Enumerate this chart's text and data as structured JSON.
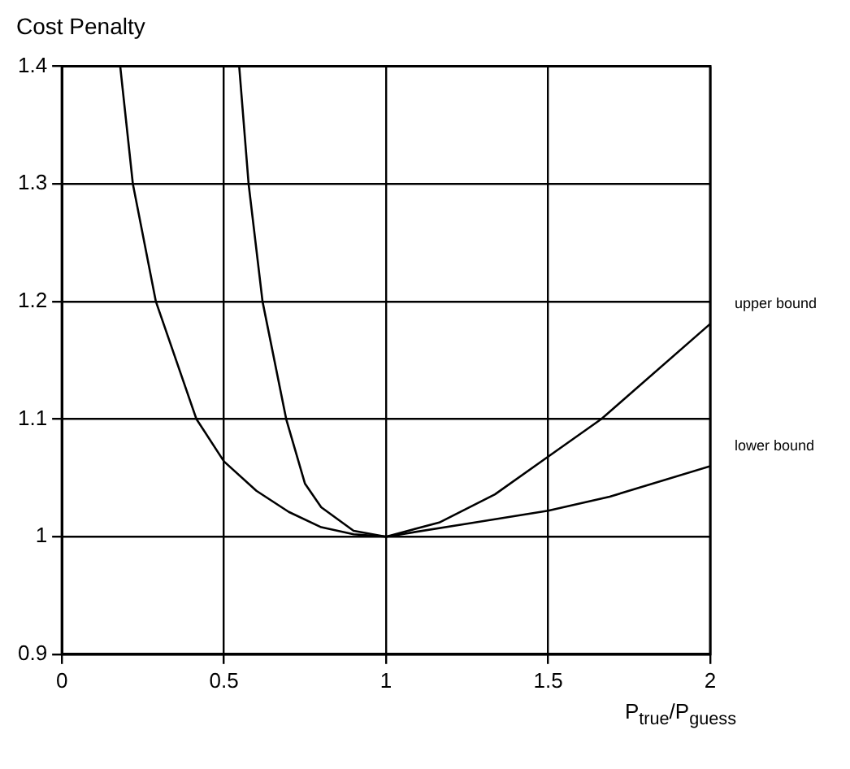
{
  "chart_data": {
    "type": "line",
    "ylabel": "Cost Penalty",
    "xlabel": "P$_{true}$/P$_{guess}$",
    "xlim": [
      0,
      2
    ],
    "xticks": [
      0,
      0.5,
      1,
      1.5,
      2
    ],
    "ylim": [
      0.9,
      1.4
    ],
    "yticks": [
      0.9,
      1,
      1.1,
      1.2,
      1.3,
      1.4
    ],
    "grid": true,
    "legend": false,
    "marker": "none",
    "line_style": "solid",
    "series": [
      {
        "name": "upper bound",
        "color": "#000000",
        "x": [
          0.547,
          0.576,
          0.619,
          0.692,
          0.75,
          0.8,
          0.9,
          1,
          1.164,
          1.336,
          1.5,
          1.664,
          2
        ],
        "values": [
          1.4,
          1.3,
          1.2,
          1.1,
          1.045,
          1.025,
          1.005,
          1,
          1.012,
          1.036,
          1.068,
          1.1,
          1.181
        ]
      },
      {
        "name": "lower bound",
        "color": "#000000",
        "x": [
          0.18,
          0.219,
          0.29,
          0.415,
          0.5,
          0.6,
          0.7,
          0.8,
          0.9,
          1,
          1.25,
          1.5,
          1.69,
          2
        ],
        "values": [
          1.4,
          1.3,
          1.2,
          1.1,
          1.064,
          1.039,
          1.021,
          1.008,
          1.002,
          1,
          1.011,
          1.022,
          1.034,
          1.06
        ]
      }
    ]
  }
}
